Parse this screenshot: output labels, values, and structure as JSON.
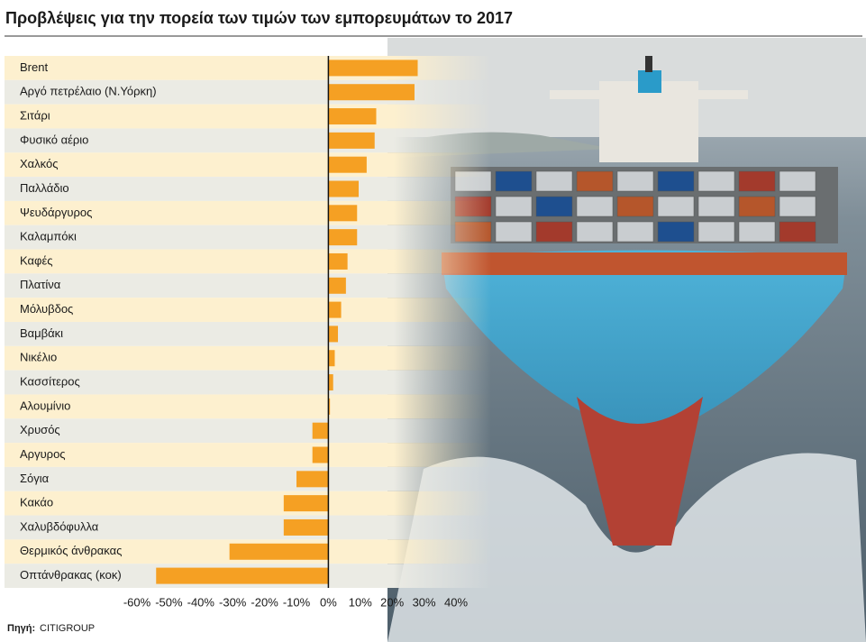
{
  "chart_data": {
    "type": "barh",
    "title": "Προβλέψεις για την πορεία των τιμών των εμπορευμάτων το 2017",
    "categories": [
      "Brent",
      "Αργό πετρέλαιο (Ν.Υόρκη)",
      "Σιτάρι",
      "Φυσικό αέριο",
      "Χαλκός",
      "Παλλάδιο",
      "Ψευδάργυρος",
      "Καλαμπόκι",
      "Καφές",
      "Πλατίνα",
      "Μόλυβδος",
      "Βαμβάκι",
      "Νικέλιο",
      "Κασσίτερος",
      "Αλουμίνιο",
      "Χρυσός",
      "Αργυρος",
      "Σόγια",
      "Κακάο",
      "Χαλυβδόφυλλα",
      "Θερμικός άνθρακας",
      "Οπτάνθρακας (κοκ)"
    ],
    "values": [
      28,
      27,
      15,
      14.5,
      12,
      9.5,
      9,
      9,
      6,
      5.5,
      4,
      3,
      2,
      1.5,
      0.5,
      -5,
      -5,
      -10,
      -14,
      -14,
      -31,
      -54
    ],
    "color": "#f5a023",
    "xlim": [
      -60,
      40
    ],
    "xticks": [
      {
        "value": -60,
        "label": "-60%"
      },
      {
        "value": -50,
        "label": "-50%"
      },
      {
        "value": -40,
        "label": "-40%"
      },
      {
        "value": -30,
        "label": "-30%"
      },
      {
        "value": -20,
        "label": "-20%"
      },
      {
        "value": -10,
        "label": "-10%"
      },
      {
        "value": 0,
        "label": "0%"
      },
      {
        "value": 10,
        "label": "10%"
      },
      {
        "value": 20,
        "label": "20%"
      },
      {
        "value": 30,
        "label": "30%"
      },
      {
        "value": 40,
        "label": "40%"
      }
    ],
    "source_label": "Πηγή:",
    "source": "CITIGROUP"
  }
}
